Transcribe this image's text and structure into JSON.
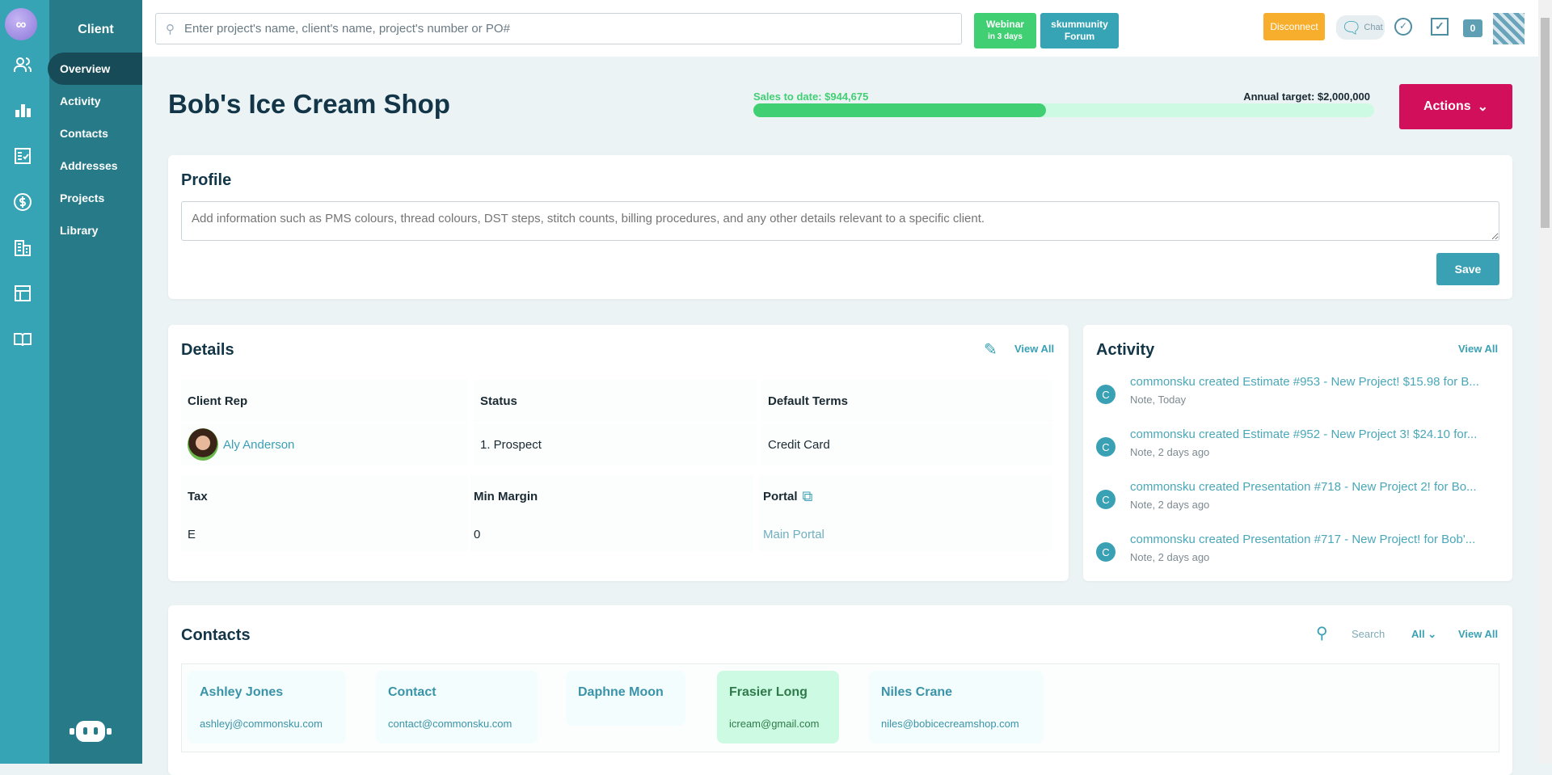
{
  "rail": {
    "logo": "cs",
    "icons": [
      "users-icon",
      "bar-chart-icon",
      "checklist-icon",
      "dollar-icon",
      "building-icon",
      "table-icon",
      "book-icon"
    ],
    "bot": "robot-icon"
  },
  "sidebar": {
    "title": "Client",
    "items": [
      {
        "label": "Overview",
        "active": true
      },
      {
        "label": "Activity"
      },
      {
        "label": "Contacts"
      },
      {
        "label": "Addresses"
      },
      {
        "label": "Projects"
      },
      {
        "label": "Library"
      }
    ]
  },
  "topbar": {
    "search_placeholder": "Enter project's name, client's name, project's number or PO#",
    "webinar": {
      "title": "Webinar",
      "sub": "in 3 days"
    },
    "forum": {
      "line1": "skummunity",
      "line2": "Forum"
    },
    "disconnect": "Disconnect",
    "chat": "Chat",
    "notifications": "0"
  },
  "header": {
    "title": "Bob's Ice Cream Shop",
    "sales_label": "Sales to date: $944,675",
    "target_label": "Annual target: $2,000,000",
    "progress_percent": 47.2,
    "actions": "Actions"
  },
  "colors": {
    "rail": "#37a4b6",
    "sidebar": "#277b89",
    "accent": "#3aa1b4",
    "actions": "#d10f5b",
    "progress": "#41cf73",
    "webinar": "#41cf73",
    "disconnect": "#f7ae2c"
  },
  "profile": {
    "title": "Profile",
    "placeholder": "Add information such as PMS colours, thread colours, DST steps, stitch counts, billing procedures, and any other details relevant to a specific client.",
    "save": "Save"
  },
  "details": {
    "title": "Details",
    "view_all": "View All",
    "client_rep_label": "Client Rep",
    "client_rep": "Aly Anderson",
    "status_label": "Status",
    "status": "1. Prospect",
    "terms_label": "Default Terms",
    "terms": "Credit Card",
    "tax_label": "Tax",
    "tax": "E",
    "margin_label": "Min Margin",
    "margin": "0",
    "portal_label": "Portal",
    "portal": "Main Portal"
  },
  "activity": {
    "title": "Activity",
    "view_all": "View All",
    "items": [
      {
        "avatar": "C",
        "text": "commonsku created Estimate #953 - New Project! $15.98 for B...",
        "sub": "Note, Today"
      },
      {
        "avatar": "C",
        "text": "commonsku created Estimate #952 - New Project 3! $24.10 for...",
        "sub": "Note, 2 days ago"
      },
      {
        "avatar": "C",
        "text": "commonsku created Presentation #718 - New Project 2! for Bo...",
        "sub": "Note, 2 days ago"
      },
      {
        "avatar": "C",
        "text": "commonsku created Presentation #717 - New Project! for Bob'...",
        "sub": "Note, 2 days ago"
      }
    ]
  },
  "contacts": {
    "title": "Contacts",
    "search_placeholder": "Search",
    "filter": "All",
    "view_all": "View All",
    "items": [
      {
        "name": "Ashley Jones",
        "email": "ashleyj@commonsku.com"
      },
      {
        "name": "Contact",
        "email": "contact@commonsku.com"
      },
      {
        "name": "Daphne Moon",
        "email": ""
      },
      {
        "name": "Frasier Long",
        "email": "icream@gmail.com"
      },
      {
        "name": "Niles Crane",
        "email": "niles@bobicecreamshop.com"
      }
    ]
  }
}
